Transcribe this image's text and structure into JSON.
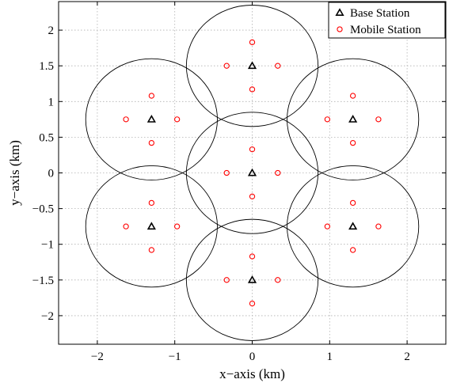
{
  "chart_data": {
    "type": "scatter",
    "title": "",
    "xlabel": "x−axis (km)",
    "ylabel": "y−axis (km)",
    "xlim": [
      -2.5,
      2.5
    ],
    "ylim": [
      -2.4,
      2.4
    ],
    "xticks": [
      -2,
      -1,
      0,
      1,
      2
    ],
    "xtick_labels": [
      "−2",
      "−1",
      "0",
      "1",
      "2"
    ],
    "yticks": [
      2,
      1.5,
      1,
      0.5,
      0,
      -0.5,
      -1,
      -1.5,
      -2
    ],
    "ytick_labels": [
      "2",
      "1.5",
      "1",
      "0.5",
      "0",
      "−0.5",
      "−1",
      "−1.5",
      "−2"
    ],
    "grid": true,
    "legend_position": "top-right",
    "cell_radius": 0.85,
    "series": [
      {
        "name": "Base Station",
        "marker": "triangle",
        "color": "#000000",
        "points": [
          [
            0,
            0
          ],
          [
            0,
            1.5
          ],
          [
            0,
            -1.5
          ],
          [
            1.3,
            0.75
          ],
          [
            1.3,
            -0.75
          ],
          [
            -1.3,
            0.75
          ],
          [
            -1.3,
            -0.75
          ]
        ]
      },
      {
        "name": "Mobile Station",
        "marker": "circle",
        "color": "#ff0000",
        "points": [
          [
            0,
            0.33
          ],
          [
            0,
            -0.33
          ],
          [
            -0.33,
            0
          ],
          [
            0.33,
            0
          ],
          [
            0,
            1.83
          ],
          [
            0,
            1.17
          ],
          [
            -0.33,
            1.5
          ],
          [
            0.33,
            1.5
          ],
          [
            0,
            -1.17
          ],
          [
            0,
            -1.83
          ],
          [
            -0.33,
            -1.5
          ],
          [
            0.33,
            -1.5
          ],
          [
            1.3,
            1.08
          ],
          [
            1.3,
            0.42
          ],
          [
            0.97,
            0.75
          ],
          [
            1.63,
            0.75
          ],
          [
            1.3,
            -0.42
          ],
          [
            1.3,
            -1.08
          ],
          [
            0.97,
            -0.75
          ],
          [
            1.63,
            -0.75
          ],
          [
            -1.3,
            1.08
          ],
          [
            -1.3,
            0.42
          ],
          [
            -1.63,
            0.75
          ],
          [
            -0.97,
            0.75
          ],
          [
            -1.3,
            -0.42
          ],
          [
            -1.3,
            -1.08
          ],
          [
            -1.63,
            -0.75
          ],
          [
            -0.97,
            -0.75
          ]
        ]
      }
    ],
    "colors": {
      "circles": "#000000",
      "grid": "#b0b0b0"
    }
  }
}
